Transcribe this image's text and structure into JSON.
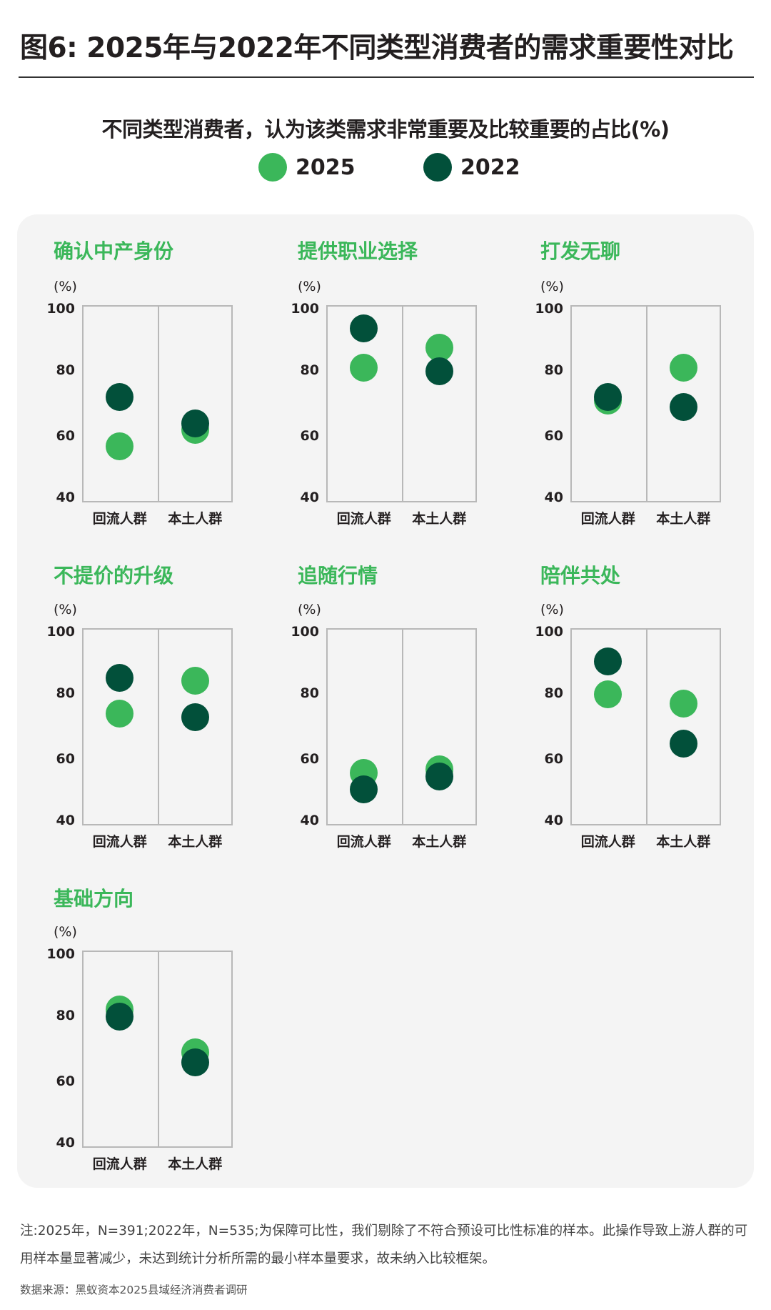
{
  "header": {
    "title": "图6: 2025年与2022年不同类型消费者的需求重要性对比",
    "subtitle": "不同类型消费者，认为该类需求非常重要及比较重要的占比(%)"
  },
  "legend": [
    {
      "label": "2025",
      "color": "#3bb75a"
    },
    {
      "label": "2022",
      "color": "#02503a"
    }
  ],
  "axis": {
    "unit": "(%)",
    "ticks": [
      "100",
      "80",
      "60",
      "40"
    ],
    "categories": [
      "回流人群",
      "本土人群"
    ]
  },
  "colors": {
    "y2025": "#3bb75a",
    "y2022": "#02503a",
    "panel_bg": "#f4f4f4",
    "title_green": "#3bb75a"
  },
  "chart_data": [
    {
      "type": "scatter",
      "title": "确认中产身份",
      "categories": [
        "回流人群",
        "本土人群"
      ],
      "ylabel": "(%)",
      "ylim": [
        40,
        100
      ],
      "yticks": [
        40,
        60,
        80,
        100
      ],
      "series": [
        {
          "name": "2025",
          "values": [
            57,
            62
          ]
        },
        {
          "name": "2022",
          "values": [
            72,
            64
          ]
        }
      ]
    },
    {
      "type": "scatter",
      "title": "提供职业选择",
      "categories": [
        "回流人群",
        "本土人群"
      ],
      "ylabel": "(%)",
      "ylim": [
        40,
        100
      ],
      "yticks": [
        40,
        60,
        80,
        100
      ],
      "series": [
        {
          "name": "2025",
          "values": [
            81,
            87
          ]
        },
        {
          "name": "2022",
          "values": [
            93,
            80
          ]
        }
      ]
    },
    {
      "type": "scatter",
      "title": "打发无聊",
      "categories": [
        "回流人群",
        "本土人群"
      ],
      "ylabel": "(%)",
      "ylim": [
        40,
        100
      ],
      "yticks": [
        40,
        60,
        80,
        100
      ],
      "series": [
        {
          "name": "2025",
          "values": [
            71,
            81
          ]
        },
        {
          "name": "2022",
          "values": [
            72,
            69
          ]
        }
      ]
    },
    {
      "type": "scatter",
      "title": "不提价的升级",
      "categories": [
        "回流人群",
        "本土人群"
      ],
      "ylabel": "(%)",
      "ylim": [
        40,
        100
      ],
      "yticks": [
        40,
        60,
        80,
        100
      ],
      "series": [
        {
          "name": "2025",
          "values": [
            74,
            84
          ]
        },
        {
          "name": "2022",
          "values": [
            85,
            73
          ]
        }
      ]
    },
    {
      "type": "scatter",
      "title": "追随行情",
      "categories": [
        "回流人群",
        "本土人群"
      ],
      "ylabel": "(%)",
      "ylim": [
        40,
        100
      ],
      "yticks": [
        40,
        60,
        80,
        100
      ],
      "series": [
        {
          "name": "2025",
          "values": [
            56,
            57
          ]
        },
        {
          "name": "2022",
          "values": [
            51,
            55
          ]
        }
      ]
    },
    {
      "type": "scatter",
      "title": "陪伴共处",
      "categories": [
        "回流人群",
        "本土人群"
      ],
      "ylabel": "(%)",
      "ylim": [
        40,
        100
      ],
      "yticks": [
        40,
        60,
        80,
        100
      ],
      "series": [
        {
          "name": "2025",
          "values": [
            80,
            77
          ]
        },
        {
          "name": "2022",
          "values": [
            90,
            65
          ]
        }
      ]
    },
    {
      "type": "scatter",
      "title": "基础方向",
      "categories": [
        "回流人群",
        "本土人群"
      ],
      "ylabel": "(%)",
      "ylim": [
        40,
        100
      ],
      "yticks": [
        40,
        60,
        80,
        100
      ],
      "series": [
        {
          "name": "2025",
          "values": [
            82,
            69
          ]
        },
        {
          "name": "2022",
          "values": [
            80,
            66
          ]
        }
      ]
    }
  ],
  "footer": {
    "note_line1": "注:2025年，N=391;2022年，N=535;为保障可比性，我们剔除了不符合预设可比性标准的样本。此操作导致上游人群的可",
    "note_line2": "用样本量显著减少，未达到统计分析所需的最小样本量要求，故未纳入比较框架。",
    "source": "数据来源：黑蚁资本2025县域经济消费者调研"
  }
}
